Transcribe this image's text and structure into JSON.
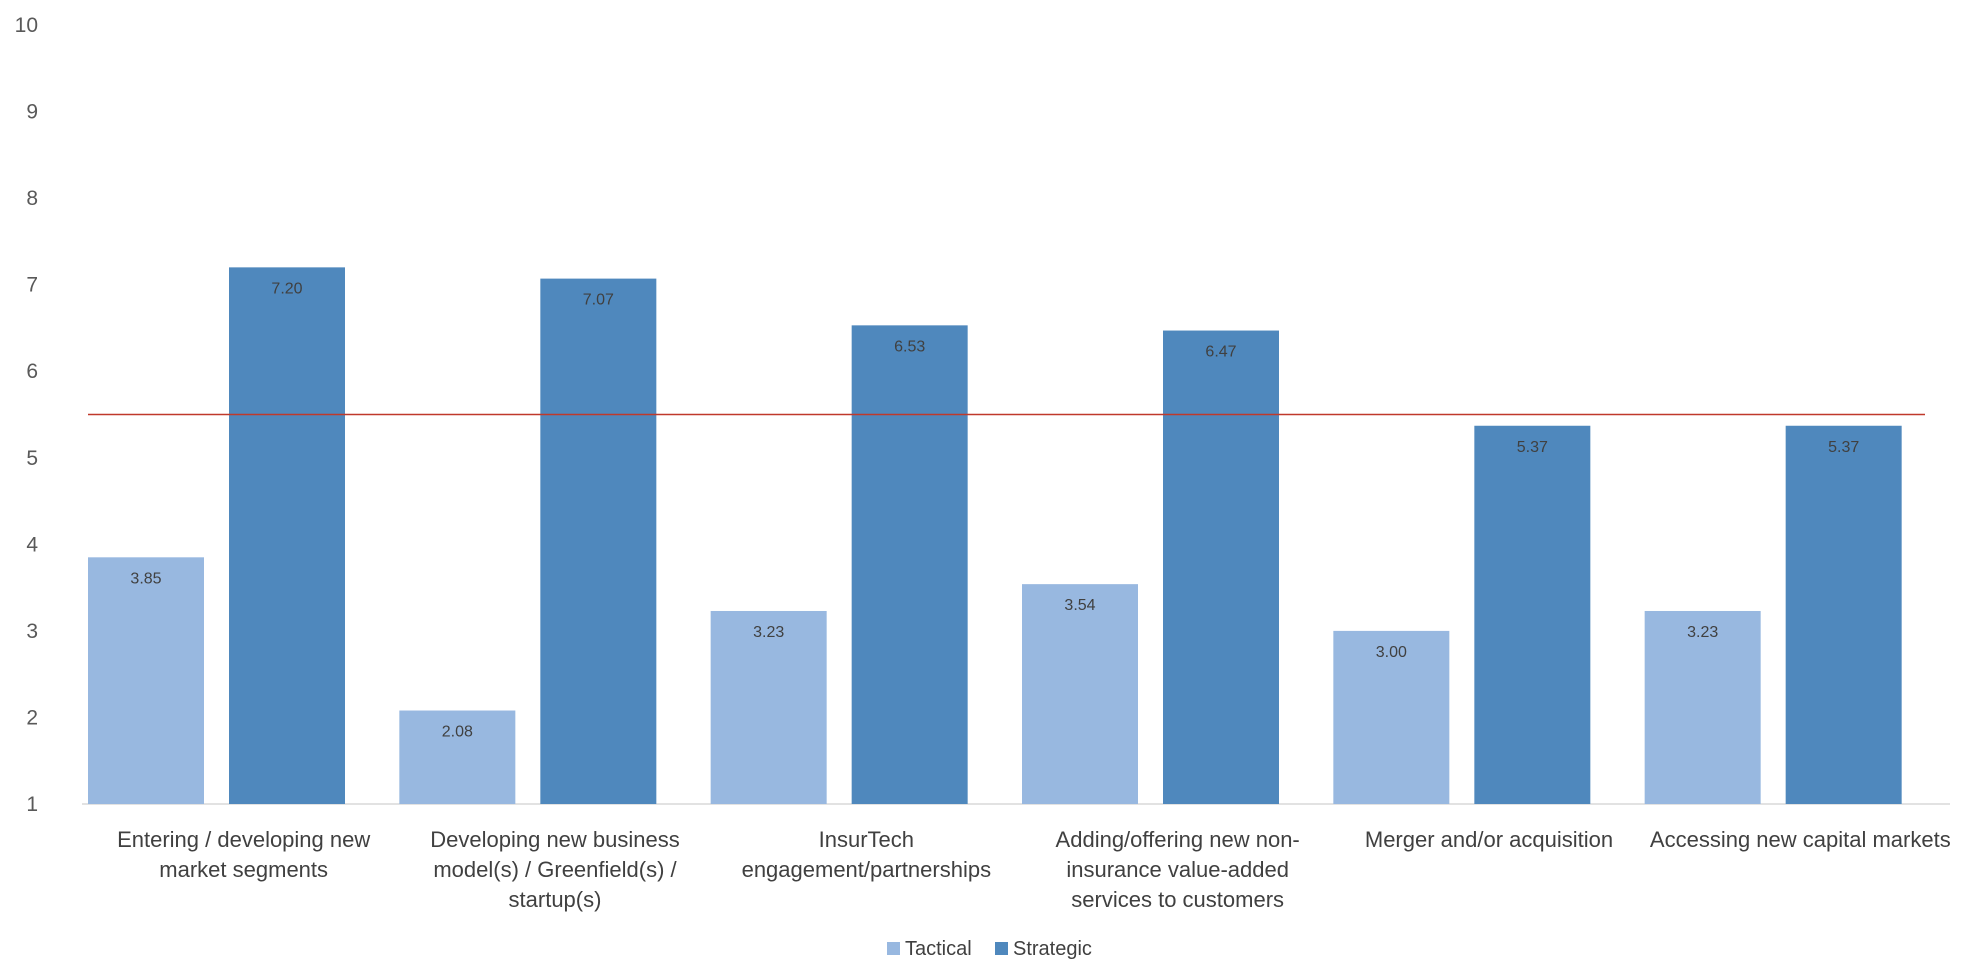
{
  "chart_data": {
    "type": "bar",
    "title": "",
    "xlabel": "",
    "ylabel": "",
    "ylim": [
      1,
      10
    ],
    "yticks": [
      1,
      2,
      3,
      4,
      5,
      6,
      7,
      8,
      9,
      10
    ],
    "grid": false,
    "legend_position": "bottom",
    "categories": [
      [
        "Entering / developing new",
        "market segments"
      ],
      [
        "Developing new business",
        "model(s) / Greenfield(s) /",
        "startup(s)"
      ],
      [
        "InsurTech",
        "engagement/partnerships"
      ],
      [
        "Adding/offering new non-",
        "insurance value-added",
        "services to customers"
      ],
      [
        "Merger and/or acquisition"
      ],
      [
        "Accessing new capital markets"
      ]
    ],
    "series": [
      {
        "name": "Tactical",
        "color": "#98b8e0",
        "values": [
          3.85,
          2.08,
          3.23,
          3.54,
          3.0,
          3.23
        ],
        "labels": [
          "3.85",
          "2.08",
          "3.23",
          "3.54",
          "3.00",
          "3.23"
        ]
      },
      {
        "name": "Strategic",
        "color": "#4f88bd",
        "values": [
          7.2,
          7.07,
          6.53,
          6.47,
          5.37,
          5.37
        ],
        "labels": [
          "7.20",
          "7.07",
          "6.53",
          "6.47",
          "5.37",
          "5.37"
        ]
      }
    ],
    "reference_line": {
      "value": 5.5,
      "color": "#c0392b"
    },
    "axis_color": "#d9d9d9"
  }
}
